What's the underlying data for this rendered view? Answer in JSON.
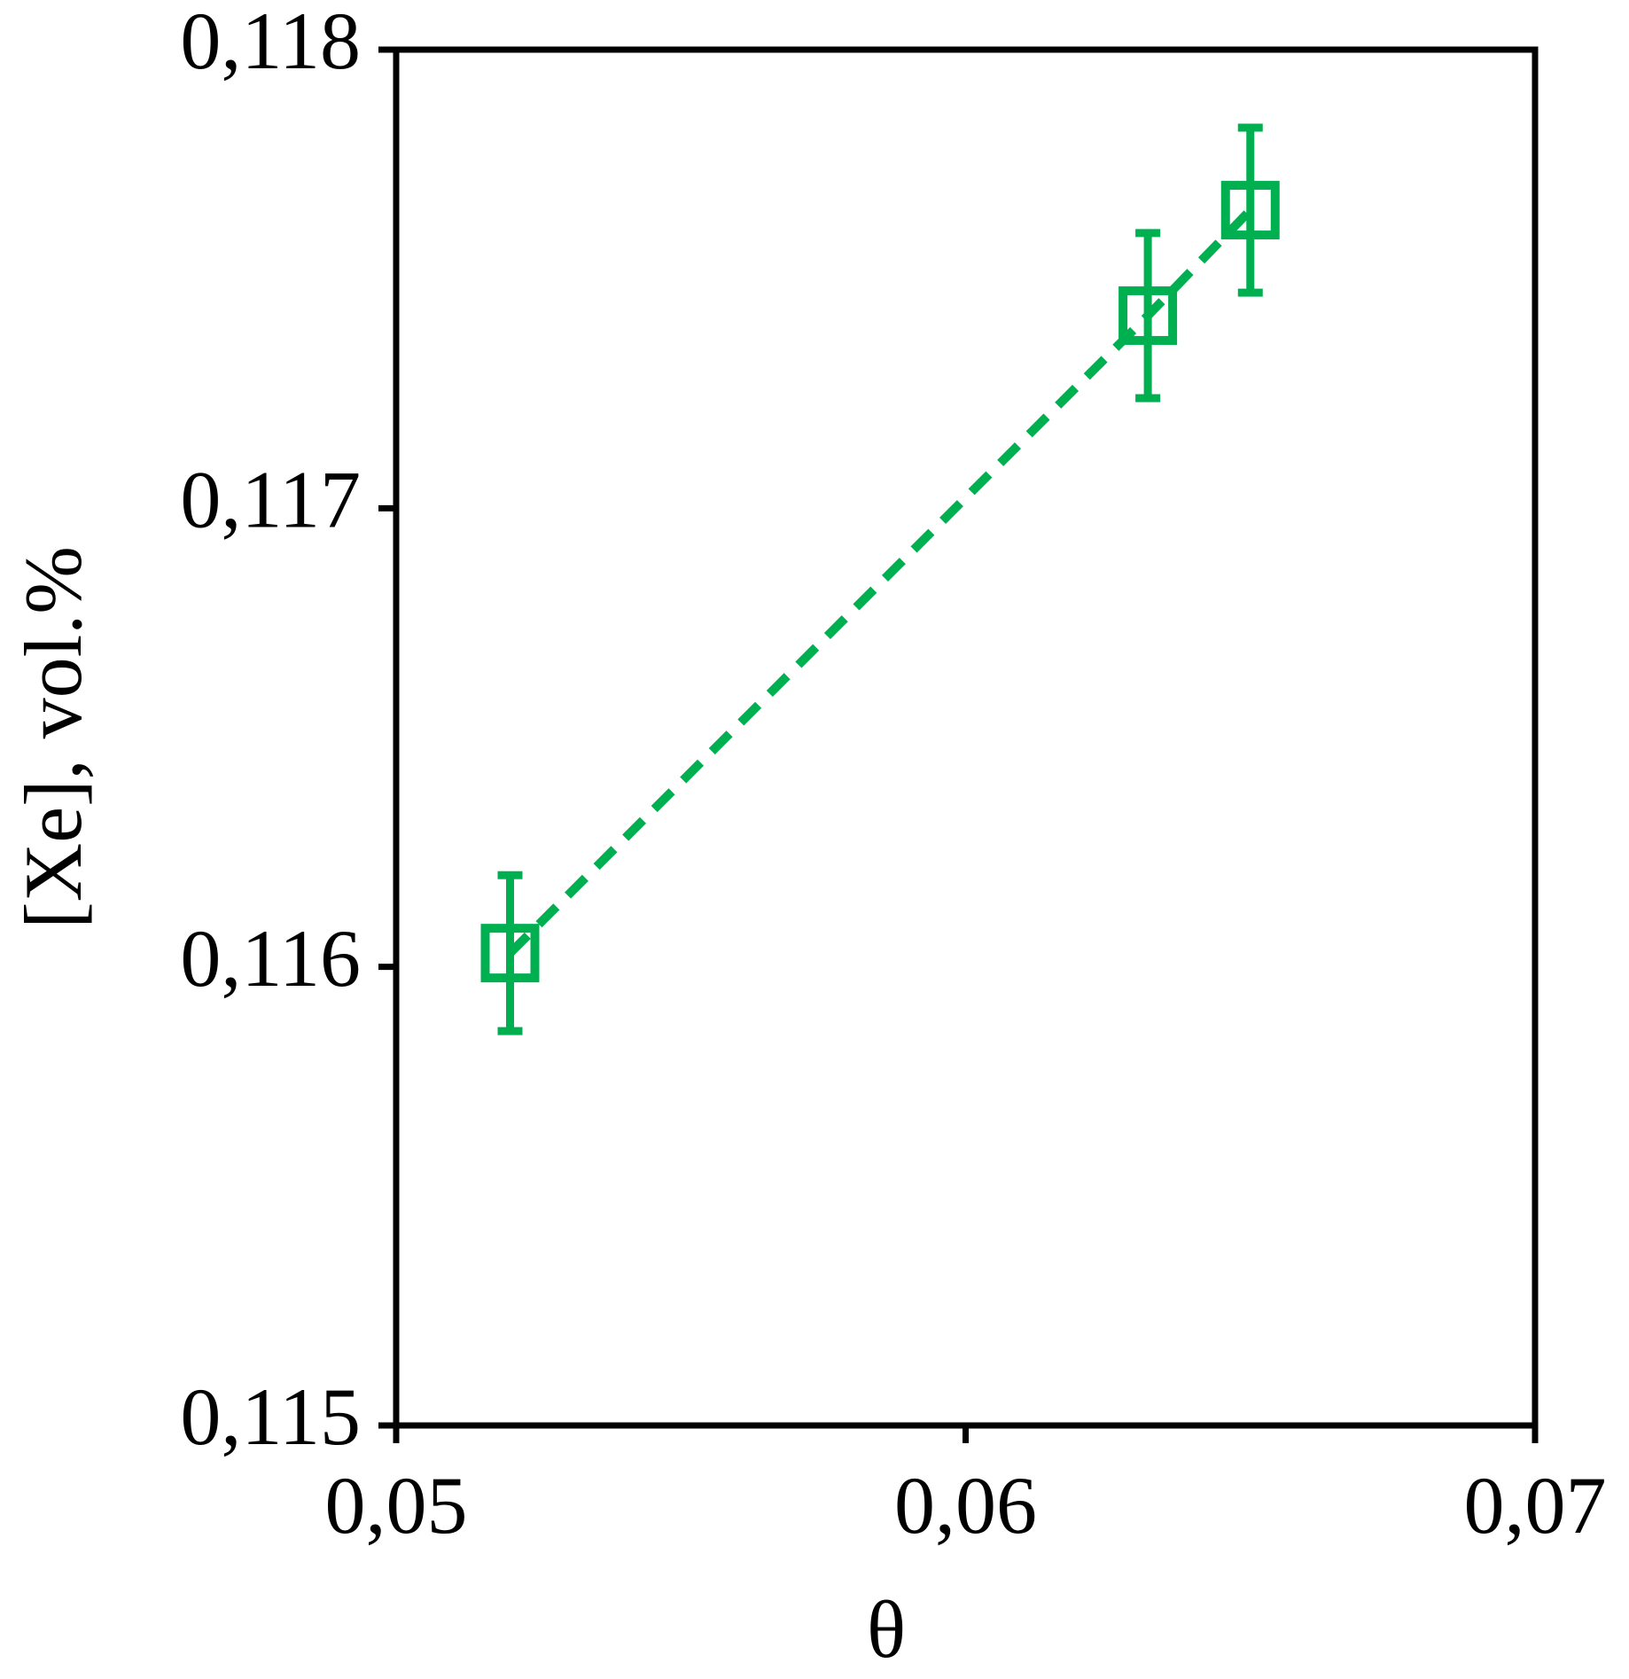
{
  "chart_data": {
    "type": "scatter",
    "xlabel": "θ",
    "ylabel": "[Xe], vol.%",
    "x": [
      0.052,
      0.0632,
      0.065
    ],
    "values": [
      0.11603,
      0.11742,
      0.11765
    ],
    "errors": [
      0.00017,
      0.00018,
      0.00018
    ],
    "color": "#00b050",
    "line": "dashed",
    "xlim": [
      0.05,
      0.07
    ],
    "xticks": [
      {
        "value": 0.05,
        "label": "0,05"
      },
      {
        "value": 0.06,
        "label": "0,06"
      },
      {
        "value": 0.07,
        "label": "0,07"
      }
    ],
    "ylim": [
      0.115,
      0.118
    ],
    "yticks": [
      {
        "value": 0.115,
        "label": "0,115"
      },
      {
        "value": 0.116,
        "label": "0,116"
      },
      {
        "value": 0.117,
        "label": "0,117"
      },
      {
        "value": 0.118,
        "label": "0,118"
      }
    ]
  }
}
